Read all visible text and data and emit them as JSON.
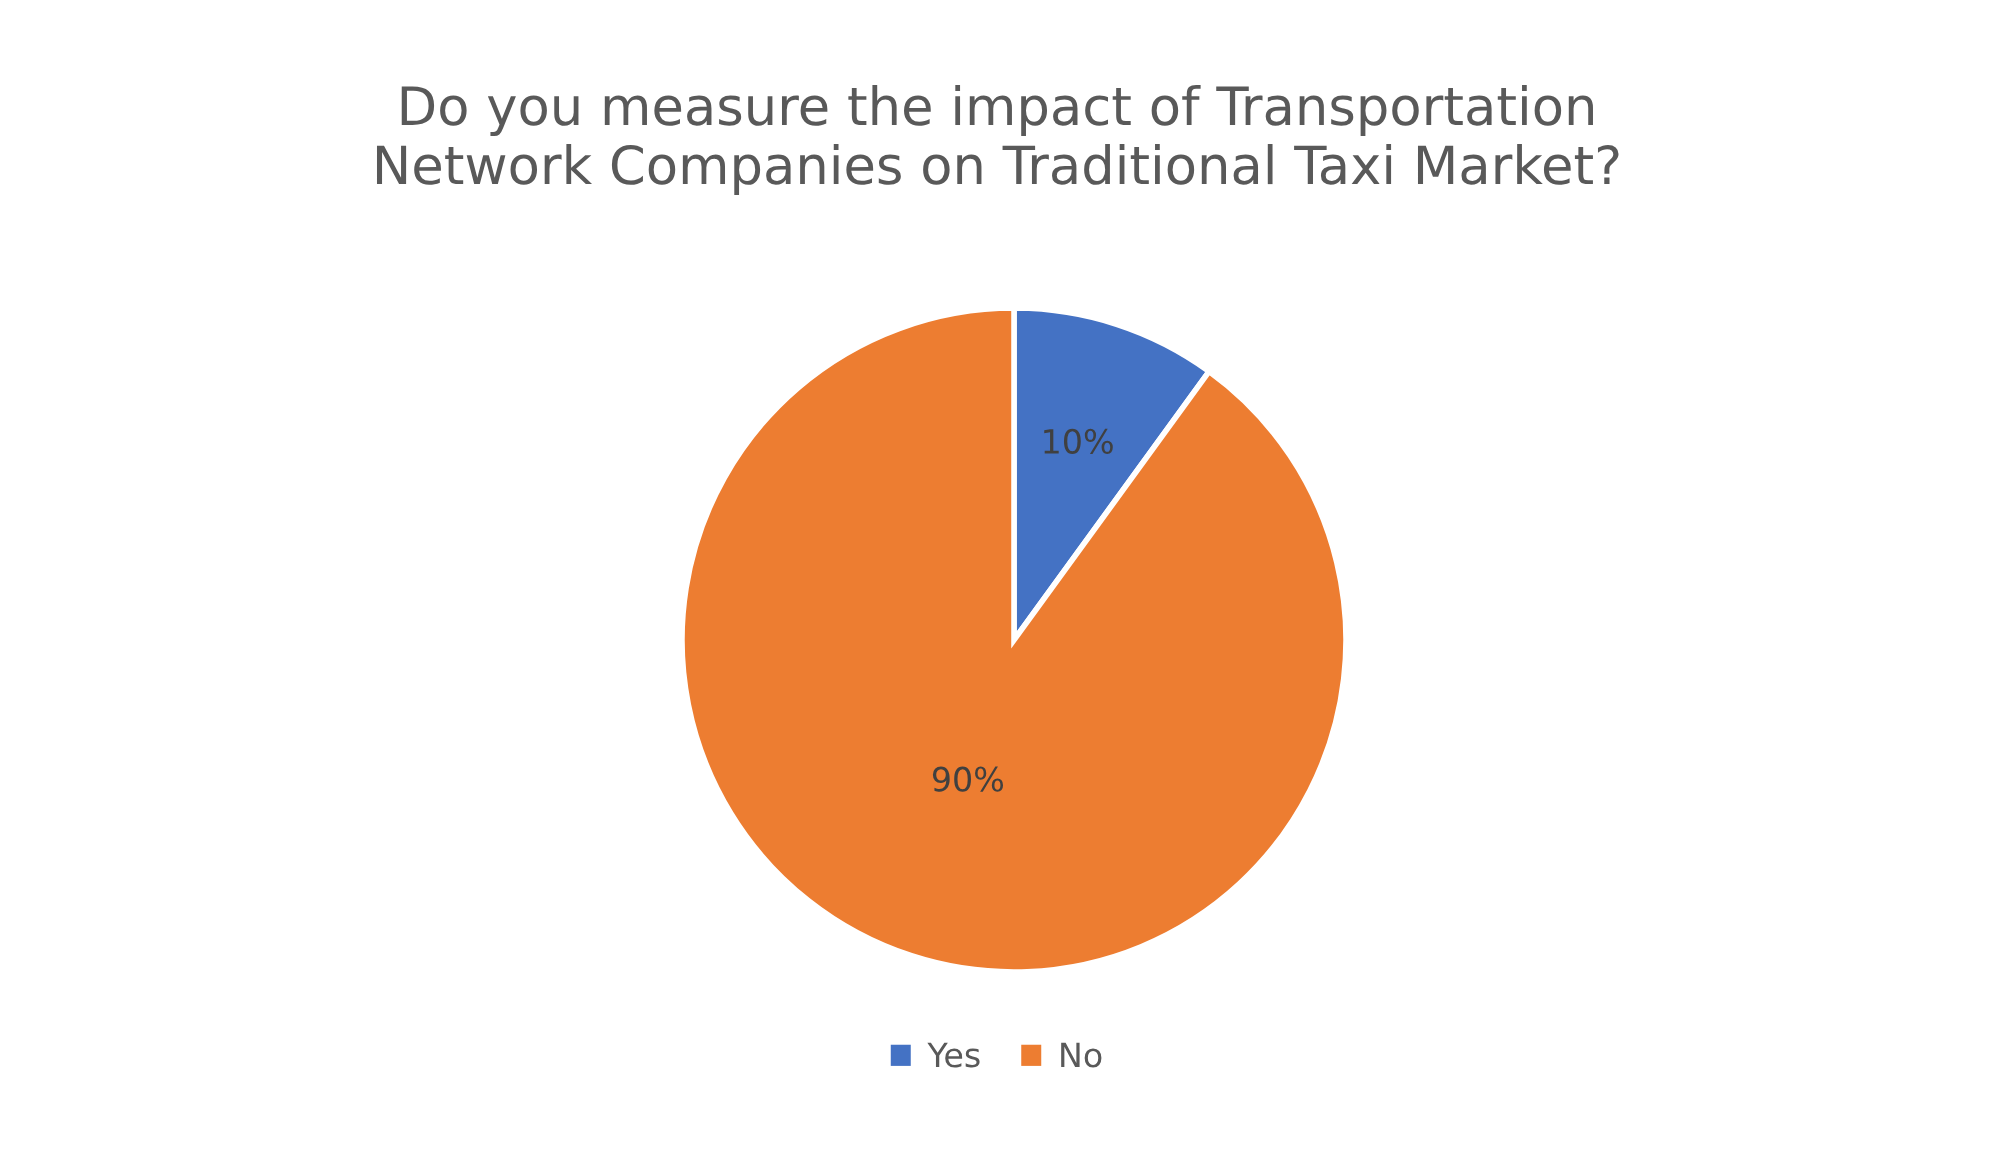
{
  "chart_data": {
    "type": "pie",
    "title": "Do you measure the impact of Transportation\nNetwork Companies on Traditional Taxi Market?",
    "categories": [
      "Yes",
      "No"
    ],
    "values": [
      10,
      90
    ],
    "colors": [
      "#4472c4",
      "#ed7d31"
    ],
    "value_labels": [
      "10%",
      "90%"
    ],
    "legend": "bottom"
  }
}
